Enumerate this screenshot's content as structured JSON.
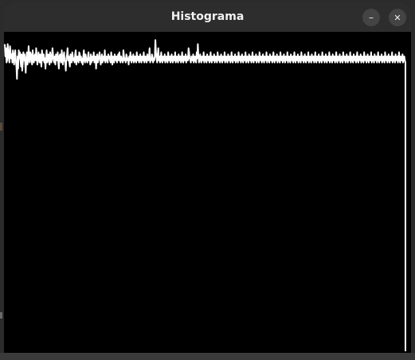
{
  "window": {
    "title": "Histograma",
    "minimize_glyph": "–",
    "close_glyph": "✕"
  },
  "chart_data": {
    "type": "line",
    "xlabel": "",
    "ylabel": "",
    "grid": false,
    "series": [
      {
        "values": [
          88,
          76,
          84,
          70,
          72,
          88,
          82,
          74,
          70,
          86,
          80,
          74,
          78,
          70,
          82,
          76,
          68,
          78,
          82,
          72,
          66,
          54,
          76,
          64,
          82,
          74,
          80,
          72,
          66,
          78,
          62,
          70,
          80,
          72,
          78,
          70,
          60,
          74,
          80,
          68,
          72,
          86,
          76,
          70,
          80,
          78,
          72,
          68,
          82,
          74,
          70,
          76,
          78,
          72,
          84,
          76,
          68,
          72,
          80,
          74,
          70,
          78,
          72,
          66,
          82,
          76,
          72,
          78,
          70,
          74,
          64,
          76,
          82,
          70,
          74,
          78,
          72,
          68,
          80,
          76,
          70,
          74,
          84,
          78,
          72,
          70,
          76,
          68,
          78,
          74,
          72,
          80,
          70,
          64,
          76,
          78,
          72,
          70,
          82,
          74,
          68,
          76,
          80,
          72,
          70,
          62,
          74,
          78,
          84,
          72,
          76,
          70,
          66,
          78,
          74,
          70,
          80,
          76,
          72,
          74,
          70,
          78,
          82,
          68,
          74,
          76,
          72,
          70,
          80,
          78,
          72,
          76,
          70,
          74,
          68,
          76,
          82,
          72,
          70,
          78,
          74,
          72,
          70,
          76,
          80,
          72,
          74,
          68,
          78,
          70,
          76,
          72,
          74,
          80,
          70,
          72,
          76,
          64,
          74,
          78,
          70,
          72,
          76,
          80,
          74,
          68,
          72,
          78,
          70,
          76,
          74,
          72,
          82,
          70,
          74,
          76,
          72,
          70,
          78,
          74,
          76,
          72,
          70,
          80,
          74,
          68,
          76,
          72,
          70,
          78,
          74,
          72,
          76,
          70,
          74,
          78,
          72,
          80,
          74,
          70,
          76,
          72,
          74,
          70,
          82,
          76,
          72,
          74,
          70,
          78,
          76,
          72,
          74,
          68,
          76,
          72,
          80,
          74,
          70,
          76,
          72,
          78,
          70,
          74,
          76,
          72,
          70,
          80,
          74,
          72,
          76,
          70,
          74,
          78,
          72,
          70,
          76,
          74,
          72,
          80,
          70,
          74,
          76,
          72,
          70,
          78,
          74,
          72,
          76,
          84,
          70,
          74,
          72,
          78,
          76,
          70,
          74,
          72,
          76,
          92,
          80,
          74,
          70,
          78,
          84,
          72,
          76,
          70,
          74,
          80,
          72,
          70,
          76,
          74,
          72,
          78,
          70,
          74,
          76,
          72,
          70,
          80,
          74,
          72,
          76,
          70,
          74,
          78,
          72,
          70,
          76,
          74,
          72,
          80,
          70,
          74,
          76,
          72,
          70,
          78,
          74,
          72,
          76,
          70,
          74,
          80,
          72,
          70,
          76,
          74,
          72,
          78,
          70,
          74,
          76,
          72,
          84,
          80,
          74,
          72,
          70,
          76,
          74,
          72,
          78,
          70,
          74,
          76,
          72,
          70,
          80,
          74,
          88,
          76,
          70,
          74,
          78,
          72,
          70,
          76,
          74,
          72,
          80,
          70,
          74,
          76,
          72,
          70,
          78,
          74,
          72,
          76,
          70,
          74,
          80,
          72,
          70,
          76,
          74,
          72,
          78,
          70,
          74,
          76,
          72,
          70,
          80,
          74,
          72,
          76,
          70,
          74,
          78,
          72,
          70,
          76,
          74,
          72,
          80,
          70,
          74,
          76,
          72,
          70,
          78,
          74,
          72,
          76,
          70,
          74,
          80,
          72,
          70,
          76,
          74,
          72,
          78,
          70,
          74,
          76,
          72,
          70,
          80,
          74,
          72,
          76,
          70,
          74,
          78,
          72,
          70,
          76,
          74,
          72,
          80,
          70,
          74,
          76,
          72,
          70,
          78,
          74,
          72,
          76,
          70,
          74,
          80,
          72,
          70,
          76,
          74,
          72,
          78,
          70,
          74,
          76,
          72,
          70,
          80,
          74,
          72,
          76,
          70,
          74,
          78,
          72,
          70,
          76,
          74,
          72,
          80,
          70,
          74,
          76,
          72,
          70,
          78,
          74,
          72,
          76,
          70,
          74,
          80,
          72,
          70,
          76,
          74,
          72,
          78,
          70,
          74,
          76,
          72,
          70,
          80,
          74,
          72,
          76,
          70,
          74,
          78,
          72,
          70,
          76,
          74,
          72,
          80,
          70,
          74,
          76,
          72,
          70,
          78,
          74,
          72,
          76,
          70,
          74,
          80,
          72,
          70,
          76,
          74,
          72,
          78,
          70,
          74,
          76,
          72,
          70,
          80,
          74,
          72,
          76,
          70,
          74,
          78,
          72,
          70,
          76,
          74,
          72,
          80,
          70,
          74,
          76,
          72,
          70,
          78,
          74,
          72,
          76,
          70,
          74,
          80,
          72,
          70,
          76,
          74,
          72,
          78,
          70,
          74,
          76,
          72,
          70,
          80,
          74,
          72,
          76,
          70,
          74,
          78,
          72,
          70,
          76,
          74,
          72,
          80,
          70,
          74,
          76,
          72,
          70,
          78,
          74,
          72,
          76,
          70,
          74,
          80,
          72,
          70,
          76,
          74,
          72,
          78,
          70,
          74,
          76,
          72,
          70,
          80,
          74,
          72,
          76,
          70,
          74,
          78,
          72,
          70,
          76,
          74,
          72,
          80,
          70,
          74,
          76,
          72,
          70,
          78,
          74,
          72,
          76,
          70,
          74,
          80,
          72,
          70,
          76,
          74,
          72,
          78,
          70,
          74,
          76,
          72,
          70,
          80,
          74,
          72,
          76,
          70,
          74,
          78,
          72,
          70,
          76,
          74,
          72,
          80,
          70,
          74,
          76,
          72,
          70,
          78,
          74,
          72,
          76,
          70,
          74,
          80,
          72,
          70,
          76,
          74,
          72,
          78,
          70,
          74,
          76,
          72,
          70,
          80,
          74,
          72,
          76,
          70,
          74,
          78,
          72,
          70,
          76,
          74,
          72,
          80,
          70,
          74,
          76,
          72,
          70,
          78,
          74,
          72,
          76,
          70,
          74,
          80,
          72,
          70,
          76,
          74,
          72,
          78,
          70,
          74,
          76,
          72,
          70,
          0
        ],
        "color": "#ffffff"
      }
    ],
    "ylim": [
      0,
      100
    ],
    "line_color": "#ffffff",
    "background_color": "#000000"
  }
}
